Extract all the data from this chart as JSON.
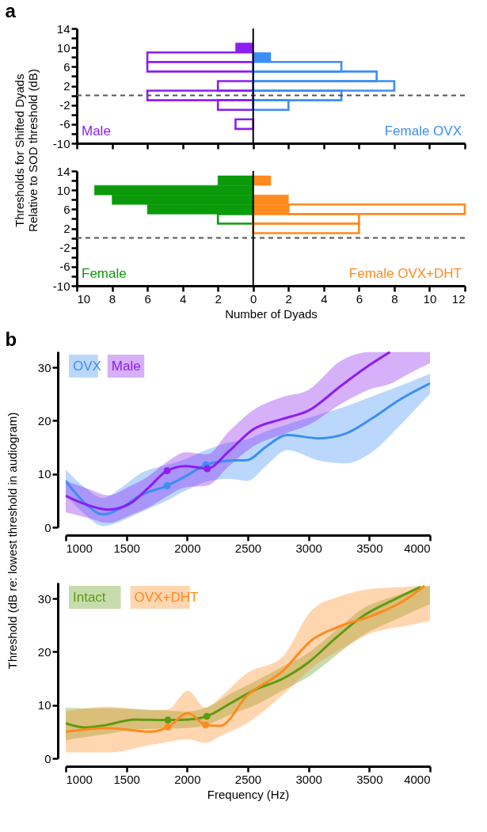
{
  "chart_data": [
    {
      "type": "bar",
      "orientation": "horizontal",
      "stacked": true,
      "title": "a",
      "ylabel": "Thresholds for Shifted Dyads\nRelative to SOD threshold (dB)",
      "x": [
        -6,
        -4,
        -2,
        0,
        2,
        4,
        6,
        8,
        10,
        12
      ],
      "series": [
        {
          "name": "Male",
          "color": "#8b1ef2",
          "values": [
            0,
            0,
            0,
            0,
            0,
            0,
            0,
            0,
            -1,
            0
          ]
        },
        {
          "color": "#8b1ef2",
          "values": [
            -1,
            0,
            -2,
            -6,
            -2,
            0,
            -6,
            -6,
            0,
            0
          ]
        },
        {
          "name": "Female OVX",
          "color": "#3b8ef5",
          "values": [
            0,
            0,
            0,
            0,
            0,
            0,
            0,
            1,
            0,
            0
          ]
        },
        {
          "color": "#3b8ef5",
          "values": [
            0,
            0,
            2,
            5,
            8,
            7,
            5,
            0,
            0,
            0
          ]
        }
      ],
      "xlim": [
        -10,
        12
      ],
      "xticks": [
        {
          "value": -10,
          "label": null
        },
        {
          "value": -8,
          "label": null
        },
        {
          "value": -6,
          "label": null
        },
        {
          "value": -4,
          "label": null
        },
        {
          "value": -2,
          "label": null
        },
        {
          "value": 0,
          "label": null
        },
        {
          "value": 2,
          "label": null
        },
        {
          "value": 4,
          "label": null
        },
        {
          "value": 6,
          "label": null
        },
        {
          "value": 8,
          "label": null
        },
        {
          "value": 10,
          "label": null
        },
        {
          "value": 12,
          "label": null
        }
      ],
      "ylim": [
        -10,
        14
      ],
      "yticks": [
        -10,
        {
          "value": -8,
          "label": null
        },
        -6,
        {
          "value": -4,
          "label": null
        },
        -2,
        {
          "value": 0,
          "label": null
        },
        2,
        {
          "value": 4,
          "label": null
        },
        6,
        {
          "value": 8,
          "label": null
        },
        10,
        {
          "value": 12,
          "label": null
        },
        14
      ],
      "tick_labels": "y",
      "ref_lines": [
        {
          "axis": "y",
          "value": 0,
          "color": "#555555",
          "line_style": "dashed"
        },
        {
          "axis": "x",
          "value": 0,
          "color": "#000000",
          "line_style": "solid"
        }
      ]
    },
    {
      "type": "bar",
      "orientation": "horizontal",
      "stacked": true,
      "xlabel": "Number of Dyads",
      "x": [
        -6,
        -4,
        -2,
        0,
        2,
        4,
        6,
        8,
        10,
        12
      ],
      "series": [
        {
          "name": "Female",
          "color": "#0a9a0a",
          "values": [
            0,
            0,
            0,
            0,
            0,
            0,
            -6,
            -8,
            -9,
            -2
          ]
        },
        {
          "color": "#0a9a0a",
          "values": [
            0,
            0,
            0,
            0,
            0,
            -2,
            0,
            0,
            0,
            0
          ]
        },
        {
          "name": "Female OVX+DHT",
          "color": "#ff8a1e",
          "values": [
            0,
            0,
            0,
            0,
            0,
            0,
            2,
            2,
            0,
            1
          ]
        },
        {
          "color": "#ff8a1e",
          "values": [
            0,
            0,
            0,
            0,
            6,
            6,
            10,
            0,
            0,
            0
          ]
        }
      ],
      "xlim": [
        -10,
        12
      ],
      "xticks": [
        {
          "value": -10,
          "label": "10"
        },
        {
          "value": -8,
          "label": "8"
        },
        {
          "value": -6,
          "label": "6"
        },
        {
          "value": -4,
          "label": "4"
        },
        {
          "value": -2,
          "label": "2"
        },
        0,
        2,
        4,
        6,
        8,
        10,
        12
      ],
      "ylim": [
        -10,
        14
      ],
      "yticks": [
        -10,
        {
          "value": -8,
          "label": null
        },
        -6,
        {
          "value": -4,
          "label": null
        },
        -2,
        {
          "value": 0,
          "label": null
        },
        2,
        {
          "value": 4,
          "label": null
        },
        6,
        {
          "value": 8,
          "label": null
        },
        10,
        {
          "value": 12,
          "label": null
        },
        14
      ],
      "ref_lines": [
        {
          "axis": "y",
          "value": 0,
          "color": "#555555",
          "line_style": "dashed"
        },
        {
          "axis": "x",
          "value": 0,
          "color": "#000000",
          "line_style": "solid"
        }
      ]
    },
    {
      "type": "line",
      "title": "b",
      "ylabel": "Threshold (dB re: lowest threshold in audiogram)",
      "legend": "top left",
      "series": [
        {
          "name": "OVX",
          "color": "#3b8ef5",
          "x": [
            1000,
            1154,
            1308,
            1462,
            1615,
            1835,
            1989,
            2154,
            2341,
            2495,
            2648,
            2824,
            3088,
            3308,
            3527,
            3747,
            4000
          ],
          "values": [
            8.7,
            4.6,
            2.4,
            3.7,
            6.0,
            7.8,
            9.6,
            11.7,
            12.5,
            12.6,
            15.1,
            17.3,
            16.7,
            17.6,
            20.5,
            23.9,
            27.0
          ],
          "lower": [
            6.0,
            2.5,
            0.2,
            1.2,
            2.8,
            5.0,
            6.9,
            8.5,
            9.1,
            8.7,
            11.5,
            14.5,
            12.5,
            12.0,
            14.2,
            19.0,
            25.1
          ],
          "upper": [
            10.8,
            7.5,
            5.5,
            7.5,
            10.1,
            11.7,
            12.8,
            14.5,
            15.9,
            16.5,
            18.0,
            19.3,
            21.2,
            22.7,
            24.6,
            26.5,
            28.8
          ]
        },
        {
          "name": "Male",
          "color": "#8b1ef2",
          "x": [
            1000,
            1176,
            1352,
            1527,
            1681,
            1835,
            1989,
            2165,
            2341,
            2538,
            2780,
            3000,
            3264,
            3505,
            3670,
            3800,
            4000
          ],
          "values": [
            5.9,
            4.2,
            3.3,
            4.4,
            7.4,
            10.6,
            11.5,
            11.0,
            14.2,
            18.3,
            20.3,
            21.9,
            26.5,
            30.5,
            32.9,
            null,
            null
          ],
          "lower": [
            2.8,
            1.8,
            0.8,
            2.2,
            3.7,
            5.8,
            7.5,
            7.8,
            11.4,
            15.1,
            17.4,
            19.2,
            23.1,
            25.9,
            26.9,
            28.5,
            30.8
          ],
          "upper": [
            8.7,
            7.3,
            6.0,
            7.7,
            9.6,
            12.3,
            14.1,
            13.7,
            17.9,
            21.9,
            24.4,
            25.8,
            31.2,
            32.9,
            32.9,
            32.9,
            32.9
          ]
        },
        {
          "type": "scatter",
          "color": "#3b8ef5",
          "x": [
            1835,
            2154
          ],
          "values": [
            7.8,
            11.7
          ]
        },
        {
          "type": "scatter",
          "color": "#8b1ef2",
          "x": [
            1835,
            2165
          ],
          "values": [
            10.6,
            11.0
          ]
        }
      ],
      "xlim": [
        1000,
        4000
      ],
      "xticks": [
        1000,
        1500,
        2000,
        2500,
        3000,
        3500,
        4000
      ],
      "ylim": [
        0,
        33
      ],
      "yticks": [
        0,
        10,
        20,
        30
      ]
    },
    {
      "type": "line",
      "xlabel": "Frequency (Hz)",
      "legend": "top left",
      "series": [
        {
          "name": "Intact",
          "color": "#5f9a12",
          "x": [
            1000,
            1166,
            1343,
            1565,
            1830,
            2007,
            2162,
            2362,
            2561,
            2782,
            3003,
            3224,
            3446,
            3712,
            3922,
            4000
          ],
          "values": [
            6.6,
            5.8,
            6.3,
            7.3,
            7.2,
            7.3,
            7.9,
            10.4,
            12.9,
            14.9,
            18.1,
            22.6,
            26.7,
            29.9,
            32.2,
            null
          ],
          "lower": [
            3.4,
            4.0,
            4.6,
            5.4,
            5.6,
            5.7,
            6.3,
            8.3,
            10.0,
            12.7,
            15.4,
            19.3,
            23.1,
            26.0,
            28.2,
            29.0
          ],
          "upper": [
            9.5,
            9.4,
            9.4,
            9.3,
            9.0,
            8.8,
            9.6,
            12.2,
            14.5,
            17.2,
            19.9,
            24.0,
            28.1,
            30.5,
            32.0,
            32.4
          ]
        },
        {
          "name": "OVX+DHT",
          "color": "#ff8a1e",
          "x": [
            1000,
            1343,
            1697,
            1841,
            2007,
            2151,
            2273,
            2494,
            2782,
            3026,
            3268,
            3512,
            3778,
            3955,
            4000
          ],
          "values": [
            5.0,
            5.7,
            5.0,
            5.9,
            8.5,
            6.3,
            6.1,
            11.8,
            16.3,
            22.2,
            24.9,
            26.7,
            29.5,
            32.4,
            null
          ],
          "lower": [
            1.1,
            1.1,
            2.5,
            3.1,
            3.6,
            2.9,
            4.2,
            6.6,
            11.8,
            17.0,
            20.5,
            23.5,
            24.8,
            25.6,
            25.8
          ],
          "upper": [
            8.8,
            9.7,
            9.0,
            9.2,
            12.7,
            9.5,
            11.5,
            16.0,
            19.0,
            27.8,
            30.5,
            31.8,
            32.2,
            32.4,
            32.4
          ]
        },
        {
          "type": "scatter",
          "color": "#5f9a12",
          "x": [
            1841,
            2162
          ],
          "values": [
            7.2,
            7.9
          ]
        },
        {
          "type": "scatter",
          "color": "#ff8a1e",
          "x": [
            1841,
            2151
          ],
          "values": [
            5.9,
            6.3
          ]
        }
      ],
      "xlim": [
        1000,
        4000
      ],
      "xticks": [
        1000,
        1500,
        2000,
        2500,
        3000,
        3500,
        4000
      ],
      "ylim": [
        0,
        33
      ],
      "yticks": [
        0,
        10,
        20,
        30
      ]
    }
  ]
}
